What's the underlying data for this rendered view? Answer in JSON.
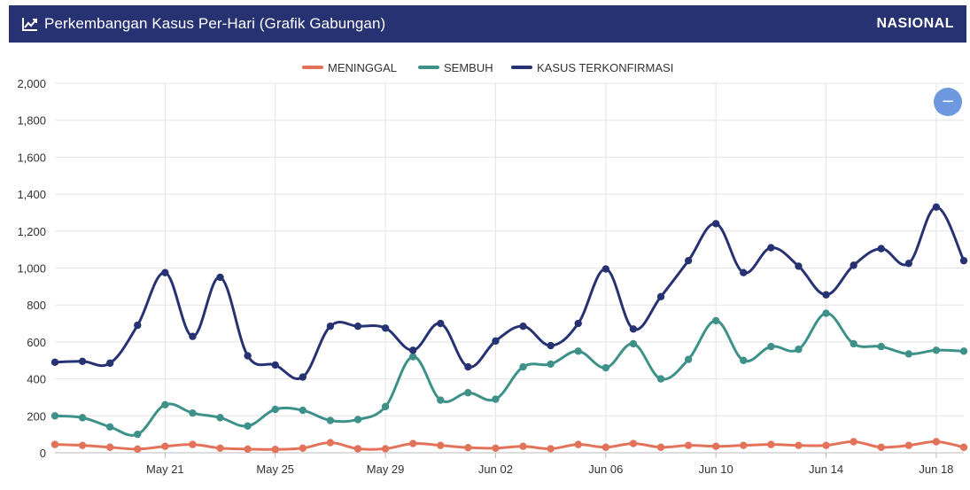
{
  "header": {
    "title": "Perkembangan Kasus Per-Hari (Grafik Gabungan)",
    "scope": "NASIONAL",
    "icon": "trend-line-icon",
    "background": "#273272"
  },
  "zoom_button": {
    "label": "−",
    "icon": "minus-icon"
  },
  "chart_data": {
    "type": "line",
    "x_ticks": [
      "May 21",
      "May 25",
      "May 29",
      "Jun 02",
      "Jun 06",
      "Jun 10",
      "Jun 14",
      "Jun 18"
    ],
    "x_tick_positions": [
      4,
      8,
      12,
      16,
      20,
      24,
      28,
      32
    ],
    "x_range": [
      0,
      33
    ],
    "x_start_date": "May 17",
    "ylim": [
      0,
      2000
    ],
    "y_ticks": [
      "0",
      "200",
      "400",
      "600",
      "800",
      "1,000",
      "1,200",
      "1,400",
      "1,600",
      "1,800",
      "2,000"
    ],
    "grid": true,
    "legend_position": "top-center",
    "series": [
      {
        "name": "MENINGGAL",
        "color": "#e2735a",
        "values": [
          45,
          40,
          30,
          20,
          35,
          45,
          25,
          20,
          18,
          25,
          55,
          22,
          22,
          50,
          40,
          28,
          25,
          35,
          22,
          45,
          30,
          50,
          30,
          40,
          35,
          40,
          45,
          40,
          40,
          60,
          30,
          40,
          60,
          30
        ]
      },
      {
        "name": "SEMBUH",
        "color": "#3d9189",
        "values": [
          200,
          190,
          140,
          100,
          260,
          215,
          190,
          145,
          235,
          230,
          175,
          180,
          250,
          520,
          285,
          325,
          290,
          465,
          480,
          550,
          460,
          590,
          400,
          505,
          715,
          500,
          575,
          560,
          755,
          590,
          575,
          535,
          555,
          550
        ]
      },
      {
        "name": "KASUS TERKONFIRMASI",
        "color": "#273272",
        "values": [
          490,
          495,
          485,
          690,
          975,
          630,
          950,
          525,
          475,
          410,
          685,
          685,
          675,
          555,
          700,
          465,
          605,
          685,
          580,
          700,
          995,
          670,
          845,
          1040,
          1240,
          975,
          1110,
          1010,
          855,
          1015,
          1105,
          1025,
          1330,
          1040
        ]
      }
    ]
  }
}
